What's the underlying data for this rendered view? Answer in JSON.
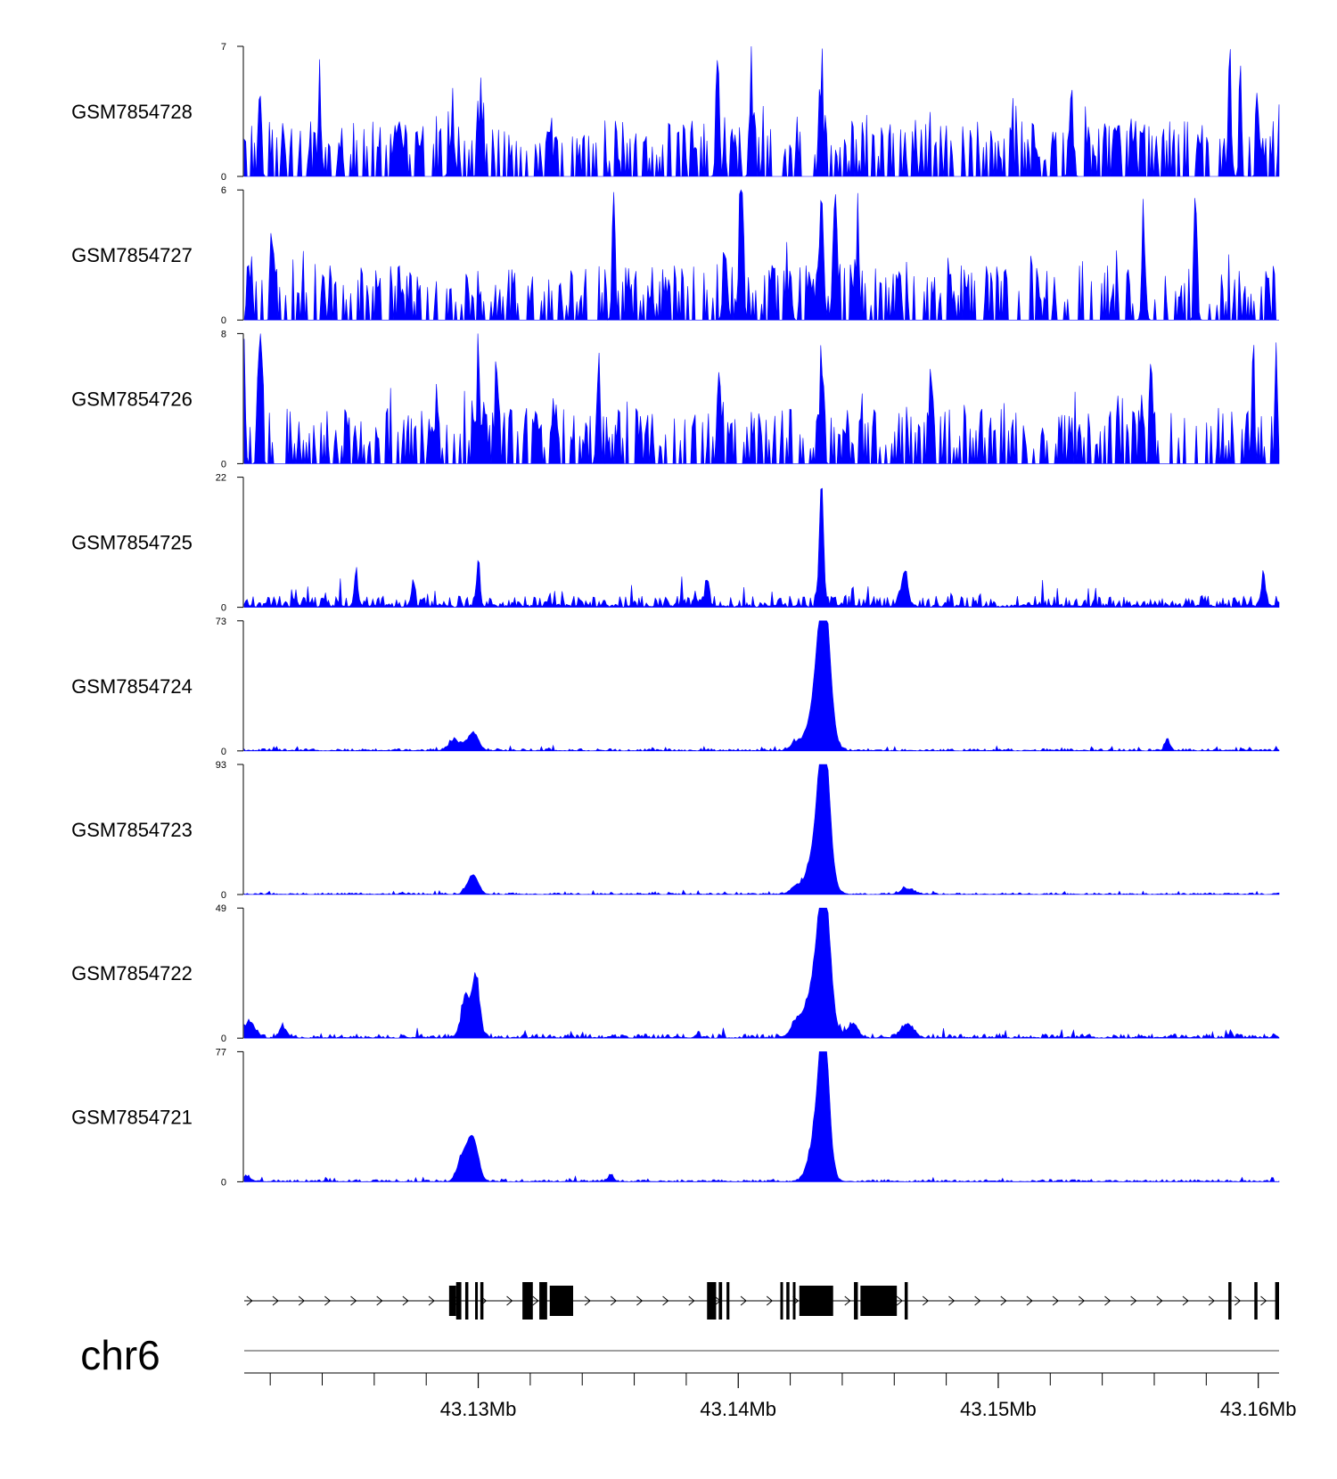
{
  "chart_data": {
    "type": "area",
    "title": "",
    "chromosome": "chr6",
    "x_unit": "Mb",
    "xlim": [
      43.121,
      43.1608
    ],
    "x_ticks": [
      {
        "value": 43.13,
        "label": "43.13Mb"
      },
      {
        "value": 43.14,
        "label": "43.14Mb"
      },
      {
        "value": 43.15,
        "label": "43.15Mb"
      },
      {
        "value": 43.16,
        "label": "43.16Mb"
      }
    ],
    "minor_ticks": [
      43.122,
      43.124,
      43.126,
      43.128,
      43.132,
      43.134,
      43.136,
      43.138,
      43.142,
      43.144,
      43.146,
      43.148,
      43.152,
      43.154,
      43.156,
      43.158
    ],
    "fill_color": "#0000ff",
    "tracks": [
      {
        "name": "GSM7854728",
        "ymax": 7,
        "ymin": 0,
        "noise": "sparse",
        "baseline": 0.05,
        "seed": 28,
        "peaks": [
          [
            43.1216,
            2.2,
            6e-05
          ],
          [
            43.1239,
            3.8,
            7e-05
          ],
          [
            43.129,
            2.5,
            9e-05
          ],
          [
            43.1301,
            3.4,
            8e-05
          ],
          [
            43.1392,
            5.2,
            6e-05
          ],
          [
            43.1405,
            5.1,
            6e-05
          ],
          [
            43.1432,
            4.4,
            7e-05
          ],
          [
            43.1528,
            4.3,
            7e-05
          ],
          [
            43.1589,
            4.3,
            7e-05
          ],
          [
            43.16,
            3.4,
            6e-05
          ],
          [
            43.1593,
            6.9,
            4e-05
          ]
        ]
      },
      {
        "name": "GSM7854727",
        "ymax": 6,
        "ymin": 0,
        "noise": "sparse",
        "baseline": 0.05,
        "seed": 27,
        "peaks": [
          [
            43.1401,
            4.0,
            9e-05
          ],
          [
            43.1395,
            3.1,
            8e-05
          ],
          [
            43.1432,
            5.8,
            8e-05
          ],
          [
            43.1437,
            5.2,
            7e-05
          ],
          [
            43.142,
            2.4,
            6e-05
          ],
          [
            43.1446,
            3.8,
            6e-05
          ],
          [
            43.1352,
            3.7,
            6e-05
          ],
          [
            43.1556,
            3.6,
            7e-05
          ],
          [
            43.1576,
            3.7,
            6e-05
          ],
          [
            43.1221,
            3.7,
            6e-05
          ]
        ]
      },
      {
        "name": "GSM7854726",
        "ymax": 8,
        "ymin": 0,
        "noise": "sparse",
        "baseline": 0.05,
        "seed": 26,
        "peaks": [
          [
            43.13,
            7.8,
            5e-05
          ],
          [
            43.1307,
            6.0,
            6e-05
          ],
          [
            43.1216,
            6.1,
            7e-05
          ],
          [
            43.121,
            5.3,
            5e-05
          ],
          [
            43.1346,
            5.0,
            6e-05
          ],
          [
            43.1393,
            4.8,
            6e-05
          ],
          [
            43.1432,
            6.0,
            7e-05
          ],
          [
            43.1474,
            6.1,
            6e-05
          ],
          [
            43.1559,
            5.6,
            6e-05
          ],
          [
            43.1598,
            5.2,
            6e-05
          ],
          [
            43.1607,
            6.0,
            5e-05
          ]
        ]
      },
      {
        "name": "GSM7854725",
        "ymax": 22,
        "ymin": 0,
        "noise": "dense",
        "baseline": 1.2,
        "seed": 25,
        "peaks": [
          [
            43.1432,
            21.0,
            8e-05
          ],
          [
            43.13,
            7.0,
            7e-05
          ],
          [
            43.1464,
            6.0,
            0.00012
          ],
          [
            43.1388,
            4.5,
            8e-05
          ],
          [
            43.1253,
            5.5,
            7e-05
          ],
          [
            43.1275,
            4.8,
            6e-05
          ],
          [
            43.1602,
            4.0,
            0.0001
          ]
        ]
      },
      {
        "name": "GSM7854724",
        "ymax": 73,
        "ymin": 0,
        "noise": "dense",
        "baseline": 0.8,
        "seed": 24,
        "peaks": [
          [
            43.1433,
            68.0,
            0.00022
          ],
          [
            43.1431,
            30.0,
            0.00035
          ],
          [
            43.1298,
            10.0,
            0.0002
          ],
          [
            43.1291,
            5.0,
            0.00025
          ],
          [
            43.1422,
            4.0,
            0.0002
          ],
          [
            43.1565,
            6.0,
            0.0001
          ]
        ]
      },
      {
        "name": "GSM7854723",
        "ymax": 93,
        "ymin": 0,
        "noise": "dense",
        "baseline": 0.8,
        "seed": 23,
        "peaks": [
          [
            43.1433,
            88.0,
            0.0002
          ],
          [
            43.1431,
            40.0,
            0.00035
          ],
          [
            43.1298,
            14.0,
            0.0002
          ],
          [
            43.1422,
            5.0,
            0.0002
          ],
          [
            43.1465,
            4.0,
            0.00025
          ]
        ]
      },
      {
        "name": "GSM7854722",
        "ymax": 49,
        "ymin": 0,
        "noise": "dense",
        "baseline": 1.0,
        "seed": 22,
        "peaks": [
          [
            43.1433,
            46.0,
            0.00022
          ],
          [
            43.143,
            20.0,
            0.0004
          ],
          [
            43.1299,
            22.0,
            0.00015
          ],
          [
            43.1295,
            15.0,
            0.00015
          ],
          [
            43.1212,
            6.0,
            0.0002
          ],
          [
            43.1444,
            5.0,
            0.0002
          ],
          [
            43.1465,
            5.0,
            0.00025
          ],
          [
            43.1422,
            4.0,
            0.0002
          ],
          [
            43.1225,
            3.5,
            0.00015
          ]
        ]
      },
      {
        "name": "GSM7854721",
        "ymax": 77,
        "ymin": 0,
        "noise": "dense",
        "baseline": 0.8,
        "seed": 21,
        "peaks": [
          [
            43.1433,
            72.0,
            0.00018
          ],
          [
            43.1431,
            35.0,
            0.0003
          ],
          [
            43.1298,
            25.0,
            0.0002
          ],
          [
            43.1294,
            14.0,
            0.0002
          ],
          [
            43.1351,
            4.0,
            0.0001
          ],
          [
            43.1211,
            3.0,
            0.00015
          ]
        ]
      }
    ],
    "gene_track": {
      "strand": "+",
      "chevron_step_mb": 0.001,
      "blocks": [
        [
          43.12888,
          43.12915,
          "utr"
        ],
        [
          43.12915,
          43.12935,
          "cds"
        ],
        [
          43.1295,
          43.12962,
          "cds"
        ],
        [
          43.12988,
          43.12998,
          "cds"
        ],
        [
          43.13008,
          43.1302,
          "cds"
        ],
        [
          43.1317,
          43.1321,
          "cds"
        ],
        [
          43.13235,
          43.13265,
          "cds"
        ],
        [
          43.13275,
          43.13365,
          "utr"
        ],
        [
          43.1388,
          43.13915,
          "cds"
        ],
        [
          43.13925,
          43.13938,
          "cds"
        ],
        [
          43.13955,
          43.13966,
          "cds"
        ],
        [
          43.14162,
          43.14172,
          "cds"
        ],
        [
          43.14185,
          43.14197,
          "cds"
        ],
        [
          43.1421,
          43.1422,
          "cds"
        ],
        [
          43.14235,
          43.14365,
          "utr"
        ],
        [
          43.14445,
          43.1446,
          "cds"
        ],
        [
          43.1447,
          43.1461,
          "utr"
        ],
        [
          43.1464,
          43.14652,
          "cds"
        ],
        [
          43.15885,
          43.15897,
          "cds"
        ],
        [
          43.15985,
          43.15997,
          "cds"
        ],
        [
          43.16065,
          43.1608,
          "cds"
        ]
      ]
    }
  }
}
